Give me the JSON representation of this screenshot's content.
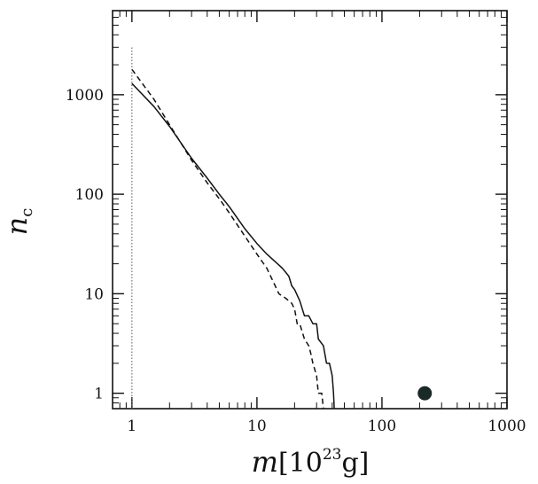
{
  "chart_data": {
    "type": "line",
    "xscale": "log",
    "yscale": "log",
    "xlim": [
      0.7,
      1000
    ],
    "ylim": [
      0.7,
      7000
    ],
    "xticks": [
      1,
      10,
      100,
      1000
    ],
    "xtick_labels": [
      "1",
      "10",
      "100",
      "1000"
    ],
    "yticks": [
      1,
      10,
      100,
      1000
    ],
    "ytick_labels": [
      "1",
      "10",
      "100",
      "1000"
    ],
    "xlabel_main": "m",
    "xlabel_unit_open": "[10",
    "xlabel_unit_exp": "23",
    "xlabel_unit_close": "g]",
    "ylabel_main": "n",
    "ylabel_sub": "c",
    "grid": false,
    "series": [
      {
        "style": "solid",
        "points": [
          [
            1.0,
            1300
          ],
          [
            1.5,
            760
          ],
          [
            2.0,
            480
          ],
          [
            3.0,
            230
          ],
          [
            4.0,
            145
          ],
          [
            5.0,
            100
          ],
          [
            6.0,
            75
          ],
          [
            8.0,
            45
          ],
          [
            10.0,
            32
          ],
          [
            12.0,
            25
          ],
          [
            14.0,
            21
          ],
          [
            16.0,
            18
          ],
          [
            18.0,
            15
          ],
          [
            19.0,
            12
          ],
          [
            20.0,
            11
          ],
          [
            22.0,
            8.5
          ],
          [
            24.0,
            6.0
          ],
          [
            26.0,
            6.0
          ],
          [
            28.0,
            5.0
          ],
          [
            30.0,
            5.0
          ],
          [
            31.0,
            3.5
          ],
          [
            34.0,
            3.0
          ],
          [
            36.0,
            2.0
          ],
          [
            38.0,
            2.0
          ],
          [
            40.0,
            1.5
          ],
          [
            41.0,
            1.0
          ],
          [
            41.5,
            0.7
          ]
        ]
      },
      {
        "style": "dashed",
        "points": [
          [
            1.0,
            1800
          ],
          [
            1.5,
            900
          ],
          [
            2.0,
            500
          ],
          [
            3.0,
            220
          ],
          [
            4.0,
            130
          ],
          [
            5.0,
            90
          ],
          [
            6.0,
            65
          ],
          [
            8.0,
            38
          ],
          [
            10.0,
            25
          ],
          [
            12.0,
            18
          ],
          [
            14.0,
            12
          ],
          [
            15.0,
            10
          ],
          [
            17.0,
            9.0
          ],
          [
            19.0,
            8.0
          ],
          [
            20.0,
            7.0
          ],
          [
            21.0,
            5.0
          ],
          [
            22.0,
            5.0
          ],
          [
            24.0,
            3.5
          ],
          [
            26.0,
            3.0
          ],
          [
            27.0,
            2.5
          ],
          [
            28.0,
            2.0
          ],
          [
            30.0,
            1.5
          ],
          [
            31.0,
            1.0
          ],
          [
            33.0,
            1.0
          ],
          [
            34.0,
            0.7
          ]
        ]
      },
      {
        "style": "dotted-vertical",
        "x": 1.0,
        "y_range": [
          0.7,
          3000
        ]
      }
    ],
    "points": [
      {
        "x": 220,
        "y": 1.0,
        "marker": "filled-circle"
      }
    ]
  }
}
